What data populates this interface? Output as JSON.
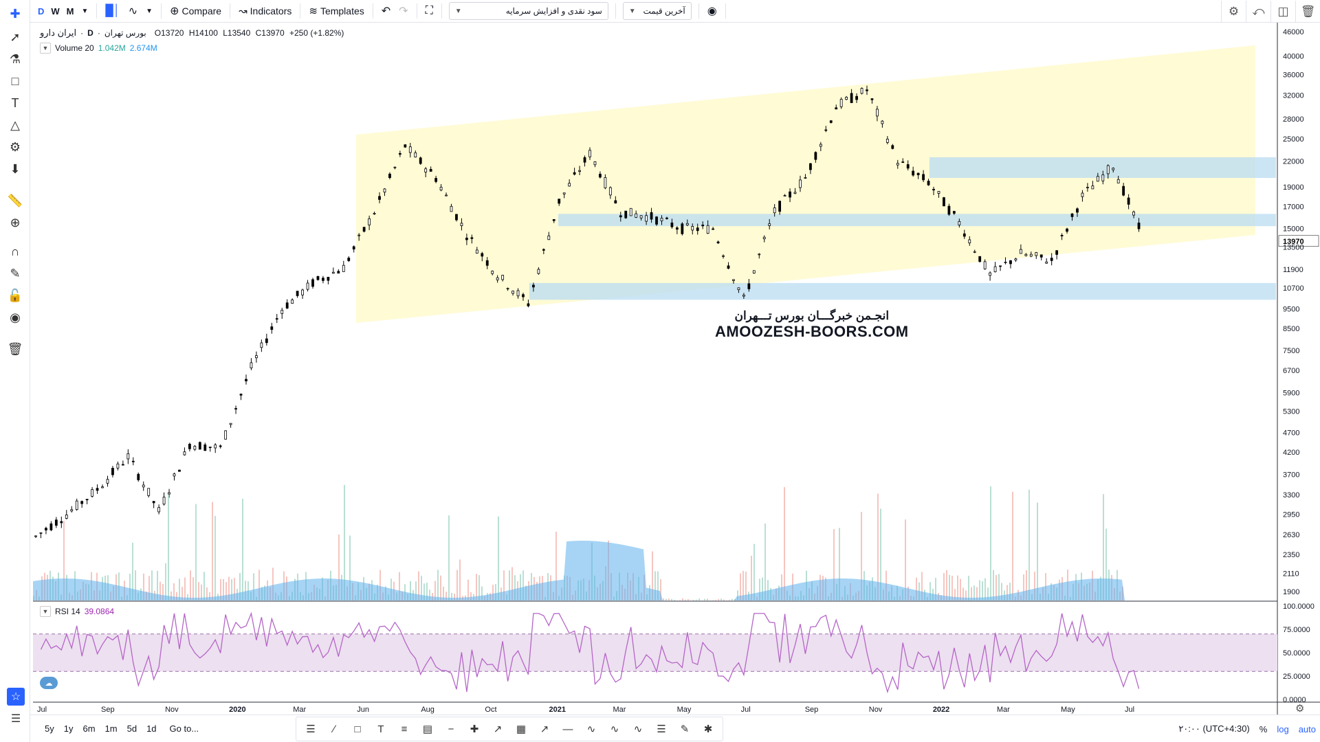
{
  "toolbar": {
    "intervals": [
      "D",
      "W",
      "M"
    ],
    "active_interval": "D",
    "compare_label": "Compare",
    "indicators_label": "Indicators",
    "templates_label": "Templates",
    "layout_select": "سود نقدی و افزایش سرمایه",
    "price_select": "آخرین قیمت"
  },
  "legend": {
    "symbol": "ایران دارو",
    "interval": "D",
    "exchange": "بورس تهران",
    "open": "O13720",
    "high": "H14100",
    "low": "L13540",
    "close": "C13970",
    "change": "+250 (+1.82%)"
  },
  "volume_legend": {
    "name": "Volume 20",
    "value1": "1.042M",
    "value2": "2.674M"
  },
  "rsi_legend": {
    "name": "RSI 14",
    "value": "39.0864"
  },
  "watermark": {
    "fa": "انجـمن خبرگـــان بورس تـــهران",
    "en": "AMOOZESH-BOORS.COM"
  },
  "price_axis": {
    "ticks": [
      "46000",
      "40000",
      "36000",
      "32000",
      "28000",
      "25000",
      "22000",
      "19000",
      "17000",
      "15000",
      "13500",
      "11900",
      "10700",
      "9500",
      "8500",
      "7500",
      "6700",
      "5900",
      "5300",
      "4700",
      "4200",
      "3700",
      "3300",
      "2950",
      "2630",
      "2350",
      "2110",
      "1900"
    ],
    "last_price": "13970"
  },
  "rsi_axis": {
    "ticks": [
      "100.0000",
      "75.0000",
      "50.0000",
      "25.0000",
      "0.0000"
    ],
    "upper": 70,
    "lower": 30
  },
  "time_axis": [
    "Jul",
    "Sep",
    "Nov",
    "2020",
    "Mar",
    "Jun",
    "Aug",
    "Oct",
    "2021",
    "Mar",
    "May",
    "Jul",
    "Sep",
    "Nov",
    "2022",
    "Mar",
    "May",
    "Jul"
  ],
  "bottom": {
    "ranges": [
      "5y",
      "1y",
      "6m",
      "1m",
      "5d",
      "1d"
    ],
    "goto": "Go to...",
    "timezone": "۲۰:۰۰ (UTC+4:30)",
    "percent": "%",
    "log": "log",
    "auto": "auto"
  },
  "colors": {
    "accent": "#2962ff",
    "channel": "#fffbd0",
    "zone": "#b9dcf2",
    "rsi": "#b565c8",
    "rsi_band": "#ede0f0",
    "volume_ma": "#5fb0ec"
  },
  "chart_data": {
    "type": "candlestick",
    "scale": "log",
    "approx_closes": [
      [
        "2019-07",
        2600
      ],
      [
        "2019-08",
        2950
      ],
      [
        "2019-09",
        3400
      ],
      [
        "2019-10",
        4100
      ],
      [
        "2019-11",
        3000
      ],
      [
        "2019-12",
        4400
      ],
      [
        "2020-01",
        4300
      ],
      [
        "2020-02",
        6800
      ],
      [
        "2020-03",
        9500
      ],
      [
        "2020-04",
        11000
      ],
      [
        "2020-05",
        12000
      ],
      [
        "2020-06",
        16500
      ],
      [
        "2020-07",
        24000
      ],
      [
        "2020-08",
        20000
      ],
      [
        "2020-09",
        14500
      ],
      [
        "2020-10",
        11500
      ],
      [
        "2020-11",
        9800
      ],
      [
        "2020-12",
        17500
      ],
      [
        "2021-01",
        23000
      ],
      [
        "2021-02",
        16500
      ],
      [
        "2021-03",
        16000
      ],
      [
        "2021-04",
        15000
      ],
      [
        "2021-05",
        15000
      ],
      [
        "2021-06",
        10000
      ],
      [
        "2021-07",
        16500
      ],
      [
        "2021-08",
        20000
      ],
      [
        "2021-09",
        30000
      ],
      [
        "2021-10",
        33000
      ],
      [
        "2021-11",
        22000
      ],
      [
        "2021-12",
        19500
      ],
      [
        "2022-01",
        15500
      ],
      [
        "2022-02",
        11500
      ],
      [
        "2022-03",
        13000
      ],
      [
        "2022-04",
        12500
      ],
      [
        "2022-05",
        18000
      ],
      [
        "2022-06",
        21500
      ],
      [
        "2022-07",
        14000
      ]
    ],
    "last": {
      "open": 13720,
      "high": 14100,
      "low": 13540,
      "close": 13970
    },
    "support_resistance_zones": [
      [
        20000,
        22500
      ],
      [
        15200,
        16300
      ],
      [
        10000,
        11000
      ]
    ],
    "rsi_period": 14,
    "rsi_last": 39.0864
  }
}
